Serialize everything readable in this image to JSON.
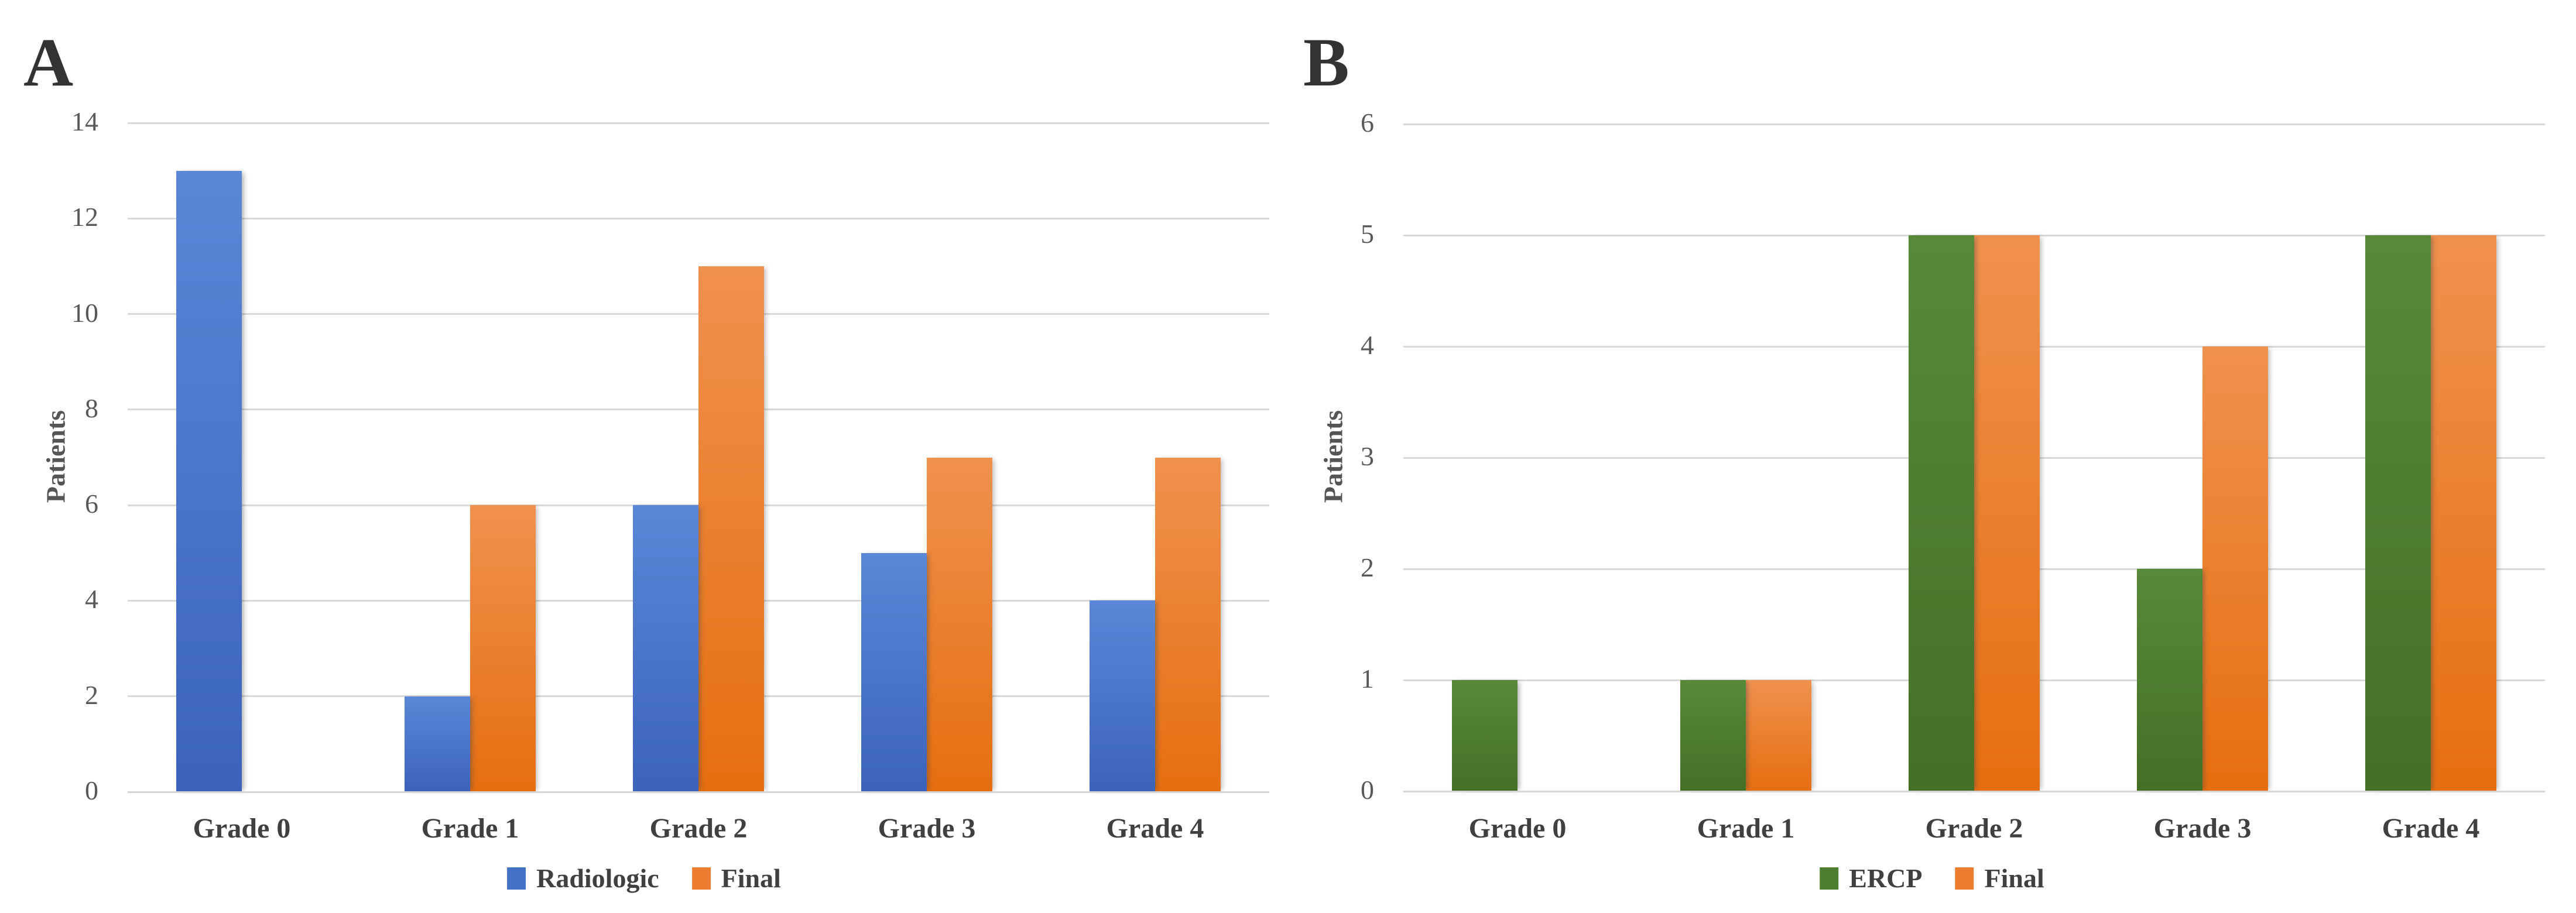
{
  "figure": {
    "background_color": "#ffffff",
    "gridline_color": "#d9d9d9",
    "axis_line_color": "#d6d6d6",
    "tick_text_color": "#595959",
    "label_text_color": "#404040",
    "panel_letter_color": "#333333"
  },
  "chart_data": [
    {
      "type": "bar",
      "panel_label": "A",
      "title": "",
      "xlabel": "",
      "ylabel": "Patients",
      "categories": [
        "Grade 0",
        "Grade 1",
        "Grade 2",
        "Grade 3",
        "Grade 4"
      ],
      "series": [
        {
          "name": "Radiologic",
          "color": "#4472c4",
          "gradient_top": "#5a87d8",
          "gradient_bottom": "#3b63bb",
          "values": [
            13,
            2,
            6,
            5,
            4
          ]
        },
        {
          "name": "Final",
          "color": "#ed7d31",
          "gradient_top": "#f0914e",
          "gradient_bottom": "#e66e10",
          "values": [
            0,
            6,
            11,
            7,
            7
          ]
        }
      ],
      "ylim": [
        0,
        14
      ],
      "ytick_step": 2,
      "grid": true,
      "legend_position": "bottom"
    },
    {
      "type": "bar",
      "panel_label": "B",
      "title": "",
      "xlabel": "",
      "ylabel": "Patients",
      "categories": [
        "Grade 0",
        "Grade 1",
        "Grade 2",
        "Grade 3",
        "Grade 4"
      ],
      "series": [
        {
          "name": "ERCP",
          "color": "#4c7f2f",
          "gradient_top": "#568a39",
          "gradient_bottom": "#447026",
          "values": [
            1,
            1,
            5,
            2,
            5
          ]
        },
        {
          "name": "Final",
          "color": "#ed7d31",
          "gradient_top": "#f0914e",
          "gradient_bottom": "#e66e10",
          "values": [
            0,
            1,
            5,
            4,
            5
          ]
        }
      ],
      "ylim": [
        0,
        6
      ],
      "ytick_step": 1,
      "grid": true,
      "legend_position": "bottom"
    }
  ]
}
